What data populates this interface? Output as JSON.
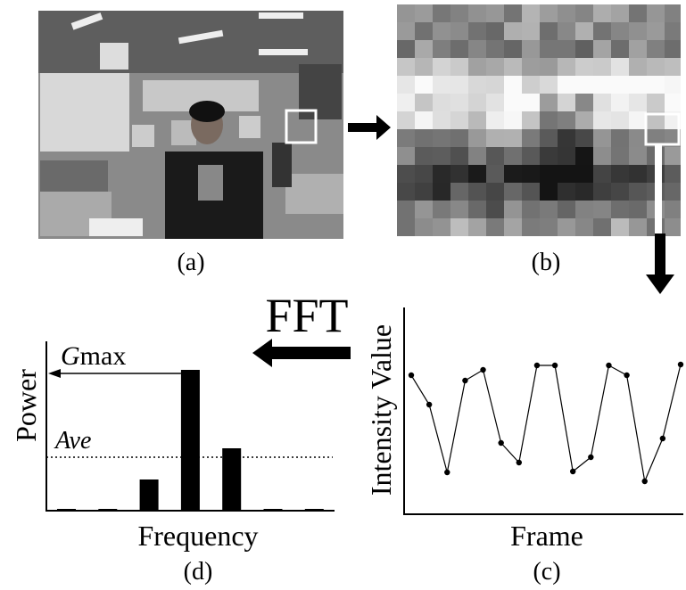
{
  "photo": {
    "caption": "(a)"
  },
  "pixels": {
    "caption": "(b)"
  },
  "fft_label": "FFT",
  "spectrum": {
    "type": "bar",
    "x_label": "Frequency",
    "y_label": "Power",
    "values": [
      2,
      2,
      35,
      158,
      70,
      2,
      2
    ],
    "ylim": [
      0,
      190
    ],
    "max_label": {
      "italic": "G",
      "text": "max"
    },
    "ave": 60,
    "ave_label": "Ave",
    "caption": "(d)"
  },
  "signal": {
    "type": "line",
    "x_label": "Frame",
    "y_label": "Intensity Value",
    "values": [
      156,
      123,
      47,
      150,
      162,
      80,
      58,
      167,
      167,
      48,
      64,
      167,
      156,
      37,
      85,
      168
    ],
    "ylim": [
      0,
      232
    ],
    "caption": "(c)"
  }
}
